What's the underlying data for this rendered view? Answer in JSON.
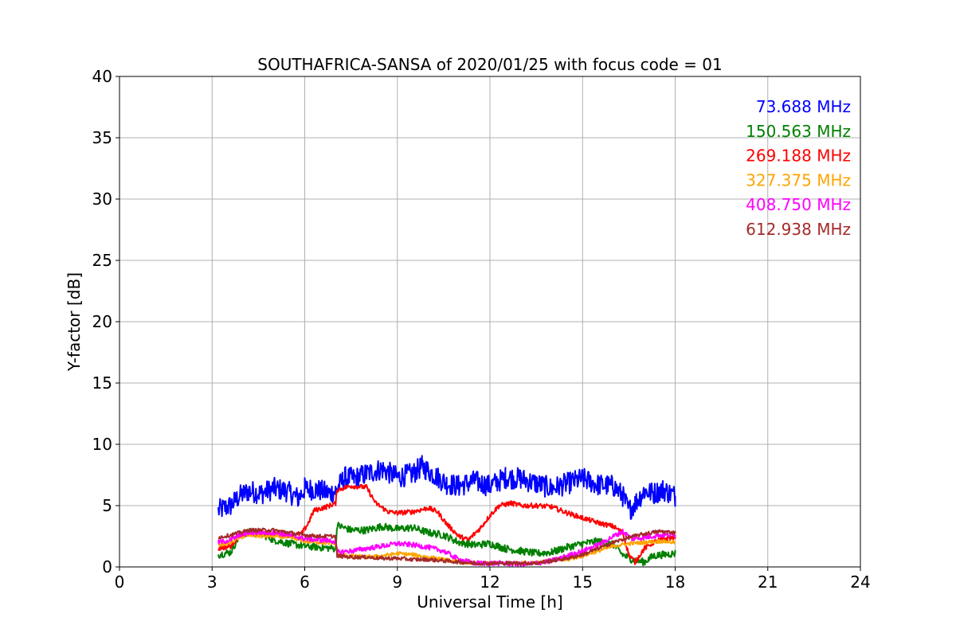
{
  "chart_data": {
    "type": "line",
    "title": "SOUTHAFRICA-SANSA of 2020/01/25 with focus code = 01",
    "xlabel": "Universal Time [h]",
    "ylabel": "Y-factor [dB]",
    "xlim": [
      0,
      24
    ],
    "ylim": [
      0,
      40
    ],
    "xticks": [
      "0",
      "3",
      "6",
      "9",
      "12",
      "15",
      "18",
      "21",
      "24"
    ],
    "yticks": [
      "0",
      "5",
      "10",
      "15",
      "20",
      "25",
      "30",
      "35",
      "40"
    ],
    "grid": true,
    "legend_position": "top-right",
    "series": [
      {
        "name": "73.688 MHz",
        "color": "#0000ff",
        "noise": 0.9,
        "x": [
          3.2,
          3.6,
          3.9,
          4.2,
          4.6,
          5.0,
          5.4,
          5.8,
          6.0,
          6.4,
          6.8,
          7.0,
          7.3,
          7.6,
          8.0,
          8.5,
          9.0,
          9.5,
          9.8,
          10.2,
          10.6,
          11.0,
          11.5,
          12.0,
          12.5,
          13.0,
          13.5,
          14.0,
          14.5,
          15.0,
          15.5,
          16.0,
          16.3,
          16.5,
          16.7,
          17.0,
          17.3,
          17.6,
          18.0
        ],
        "y": [
          4.6,
          5.0,
          5.8,
          6.2,
          6.0,
          6.4,
          6.2,
          5.6,
          6.4,
          6.3,
          6.0,
          6.2,
          7.3,
          7.2,
          7.6,
          8.0,
          7.3,
          7.6,
          8.2,
          7.5,
          6.8,
          6.6,
          7.0,
          6.6,
          7.3,
          7.2,
          6.8,
          6.4,
          6.8,
          7.2,
          6.7,
          6.6,
          5.8,
          4.6,
          5.2,
          6.2,
          6.0,
          6.3,
          5.8
        ]
      },
      {
        "name": "150.563 MHz",
        "color": "#008000",
        "noise": 0.3,
        "x": [
          3.2,
          3.6,
          3.9,
          4.2,
          4.6,
          5.0,
          5.5,
          6.0,
          6.5,
          7.0,
          7.05,
          7.5,
          8.0,
          8.5,
          9.0,
          9.5,
          10.0,
          10.5,
          11.0,
          11.5,
          12.0,
          12.5,
          13.0,
          13.5,
          14.0,
          14.5,
          15.0,
          15.5,
          16.0,
          16.3,
          16.6,
          17.0,
          17.3,
          17.6,
          18.0
        ],
        "y": [
          1.0,
          1.2,
          2.6,
          2.8,
          2.7,
          2.2,
          1.9,
          1.7,
          1.6,
          1.5,
          3.4,
          3.0,
          3.0,
          3.3,
          3.1,
          3.2,
          2.8,
          2.6,
          2.0,
          1.8,
          1.9,
          1.5,
          1.3,
          1.1,
          1.2,
          1.6,
          1.9,
          2.1,
          1.8,
          1.0,
          0.6,
          0.4,
          0.9,
          1.0,
          1.1
        ]
      },
      {
        "name": "269.188 MHz",
        "color": "#ff0000",
        "noise": 0.2,
        "x": [
          3.2,
          3.6,
          3.9,
          4.2,
          4.6,
          5.0,
          5.5,
          5.9,
          6.1,
          6.3,
          6.7,
          7.0,
          7.05,
          7.5,
          8.0,
          8.3,
          8.7,
          9.0,
          9.5,
          10.0,
          10.3,
          10.6,
          11.0,
          11.3,
          11.7,
          12.0,
          12.3,
          12.7,
          13.0,
          13.5,
          14.0,
          14.5,
          15.0,
          15.5,
          16.0,
          16.3,
          16.5,
          16.7,
          17.0,
          17.3,
          17.6,
          18.0
        ],
        "y": [
          1.5,
          1.7,
          2.6,
          2.7,
          2.8,
          2.7,
          2.6,
          2.7,
          3.5,
          4.6,
          4.9,
          5.2,
          6.3,
          6.6,
          6.5,
          5.2,
          4.5,
          4.4,
          4.5,
          4.8,
          4.5,
          3.5,
          2.5,
          2.2,
          3.2,
          4.2,
          5.0,
          5.2,
          5.0,
          5.0,
          4.9,
          4.4,
          4.0,
          3.6,
          3.3,
          2.8,
          1.0,
          0.4,
          1.5,
          2.0,
          2.3,
          2.4
        ]
      },
      {
        "name": "327.375 MHz",
        "color": "#ffa500",
        "noise": 0.15,
        "x": [
          3.2,
          3.6,
          3.9,
          4.2,
          4.6,
          5.0,
          5.5,
          6.0,
          6.5,
          7.0,
          7.05,
          7.5,
          8.0,
          8.5,
          9.0,
          9.5,
          10.0,
          10.5,
          11.0,
          11.5,
          12.0,
          12.5,
          13.0,
          13.5,
          14.0,
          14.5,
          15.0,
          15.5,
          16.0,
          16.5,
          17.0,
          17.5,
          18.0
        ],
        "y": [
          1.8,
          2.0,
          2.4,
          2.6,
          2.5,
          2.5,
          2.4,
          2.1,
          2.0,
          1.9,
          1.0,
          0.9,
          0.8,
          0.9,
          1.1,
          1.0,
          0.8,
          0.6,
          0.4,
          0.3,
          0.3,
          0.3,
          0.3,
          0.4,
          0.5,
          0.6,
          0.9,
          1.3,
          1.7,
          1.9,
          2.0,
          2.1,
          2.0
        ]
      },
      {
        "name": "408.750 MHz",
        "color": "#ff00ff",
        "noise": 0.2,
        "x": [
          3.2,
          3.6,
          3.9,
          4.2,
          4.6,
          5.0,
          5.5,
          6.0,
          6.5,
          7.0,
          7.05,
          7.5,
          8.0,
          8.5,
          9.0,
          9.5,
          10.0,
          10.5,
          11.0,
          11.5,
          12.0,
          12.5,
          13.0,
          13.5,
          14.0,
          14.5,
          15.0,
          15.5,
          16.0,
          16.3,
          16.6,
          17.0,
          17.5,
          18.0
        ],
        "y": [
          2.0,
          2.2,
          2.6,
          2.8,
          2.8,
          2.8,
          2.6,
          2.3,
          2.2,
          2.1,
          1.2,
          1.3,
          1.5,
          1.7,
          1.9,
          1.8,
          1.6,
          1.3,
          0.6,
          0.3,
          0.3,
          0.3,
          0.2,
          0.3,
          0.5,
          0.9,
          1.3,
          1.8,
          2.5,
          2.9,
          2.3,
          2.4,
          2.6,
          2.6
        ]
      },
      {
        "name": "612.938 MHz",
        "color": "#a52a2a",
        "noise": 0.15,
        "x": [
          3.2,
          3.6,
          3.9,
          4.2,
          4.6,
          5.0,
          5.5,
          6.0,
          6.5,
          7.0,
          7.05,
          7.5,
          8.0,
          8.5,
          9.0,
          9.5,
          10.0,
          10.5,
          11.0,
          11.5,
          12.0,
          12.5,
          13.0,
          13.5,
          14.0,
          14.5,
          15.0,
          15.5,
          16.0,
          16.5,
          17.0,
          17.5,
          18.0
        ],
        "y": [
          2.4,
          2.6,
          2.8,
          3.0,
          3.0,
          3.0,
          2.8,
          2.6,
          2.5,
          2.5,
          0.9,
          0.8,
          0.8,
          0.7,
          0.7,
          0.6,
          0.6,
          0.5,
          0.4,
          0.3,
          0.3,
          0.3,
          0.3,
          0.3,
          0.5,
          0.7,
          1.0,
          1.5,
          2.0,
          2.4,
          2.7,
          2.9,
          2.8
        ]
      }
    ]
  }
}
